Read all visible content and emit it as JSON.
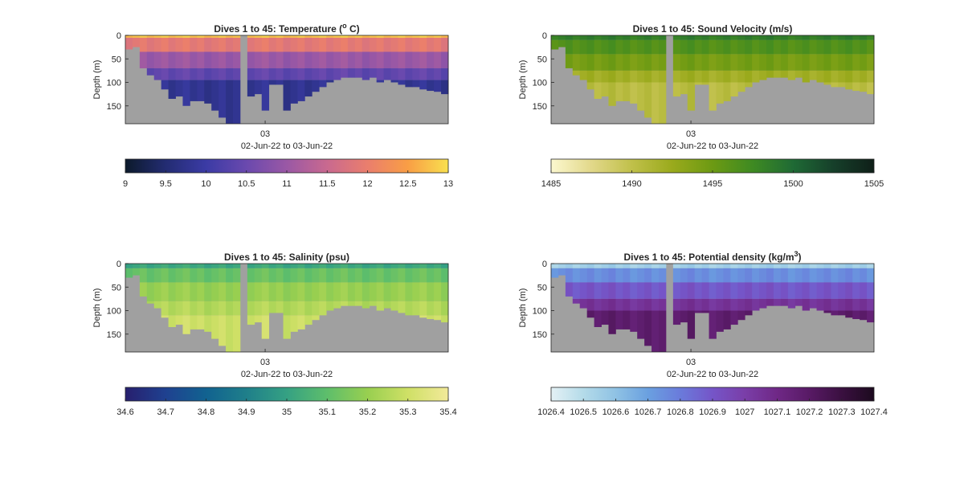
{
  "figure": {
    "background": "#ffffff",
    "land_color": "#a0a0a0"
  },
  "chart_data": [
    {
      "type": "heatmap",
      "title": "Dives 1 to 45: Temperature (",
      "title_sup": "o",
      "title_after": " C)",
      "xlabel": "02-Jun-22 to 03-Jun-22",
      "ylabel": "Depth (m)",
      "x_ticks": [
        "03"
      ],
      "y_ticks": [
        0,
        50,
        100,
        150
      ],
      "ylim": [
        0,
        188
      ],
      "dives": 45,
      "bottom_depth_m": [
        30,
        25,
        70,
        85,
        95,
        115,
        135,
        130,
        150,
        140,
        140,
        145,
        160,
        175,
        188,
        188,
        0,
        130,
        125,
        160,
        105,
        105,
        160,
        145,
        140,
        130,
        120,
        110,
        100,
        95,
        90,
        90,
        90,
        95,
        90,
        100,
        95,
        100,
        105,
        110,
        110,
        115,
        118,
        120,
        125
      ],
      "colorbar": {
        "ticks": [
          "9",
          "9.5",
          "10",
          "10.5",
          "11",
          "11.5",
          "12",
          "12.5",
          "13"
        ],
        "min": 9,
        "max": 13,
        "colors": [
          "#0c1a2b",
          "#232c72",
          "#3b3ba5",
          "#6a49ae",
          "#9a58a5",
          "#c9698f",
          "#ea7e6d",
          "#f99e45",
          "#f9e04f"
        ]
      },
      "layers": [
        {
          "from": 0,
          "to": 5,
          "value": 12.8
        },
        {
          "from": 5,
          "to": 35,
          "value": 11.9
        },
        {
          "from": 35,
          "to": 70,
          "value": 11.0
        },
        {
          "from": 70,
          "to": 95,
          "value": 10.4
        },
        {
          "from": 95,
          "to": 190,
          "value": 9.8
        }
      ]
    },
    {
      "type": "heatmap",
      "title": "Dives 1 to 45: Sound Velocity (m/s)",
      "title_sup": "",
      "title_after": "",
      "xlabel": "02-Jun-22 to 03-Jun-22",
      "ylabel": "Depth (m)",
      "x_ticks": [
        "03"
      ],
      "y_ticks": [
        0,
        50,
        100,
        150
      ],
      "ylim": [
        0,
        188
      ],
      "dives": 45,
      "bottom_depth_m": [
        30,
        25,
        70,
        85,
        95,
        115,
        135,
        130,
        150,
        140,
        140,
        145,
        160,
        175,
        188,
        188,
        0,
        130,
        125,
        160,
        105,
        105,
        160,
        145,
        140,
        130,
        120,
        110,
        100,
        95,
        90,
        90,
        90,
        95,
        90,
        100,
        95,
        100,
        105,
        110,
        110,
        115,
        118,
        120,
        125
      ],
      "colorbar": {
        "ticks": [
          "1485",
          "1490",
          "1495",
          "1500",
          "1505"
        ],
        "min": 1485,
        "max": 1505,
        "colors": [
          "#fcf8cf",
          "#e2d88a",
          "#c0c04a",
          "#9aaa1c",
          "#6c9a13",
          "#3e8a22",
          "#1f6a35",
          "#163f2a",
          "#0f1f18"
        ]
      },
      "layers": [
        {
          "from": 0,
          "to": 10,
          "value": 1498.5
        },
        {
          "from": 10,
          "to": 40,
          "value": 1496.5
        },
        {
          "from": 40,
          "to": 75,
          "value": 1494.5
        },
        {
          "from": 75,
          "to": 100,
          "value": 1492.0
        },
        {
          "from": 100,
          "to": 190,
          "value": 1490.5
        }
      ]
    },
    {
      "type": "heatmap",
      "title": "Dives 1 to 45: Salinity (psu)",
      "title_sup": "",
      "title_after": "",
      "xlabel": "02-Jun-22 to 03-Jun-22",
      "ylabel": "Depth (m)",
      "x_ticks": [
        "03"
      ],
      "y_ticks": [
        0,
        50,
        100,
        150
      ],
      "ylim": [
        0,
        188
      ],
      "dives": 45,
      "bottom_depth_m": [
        30,
        25,
        70,
        85,
        95,
        115,
        135,
        130,
        150,
        140,
        140,
        145,
        160,
        175,
        188,
        188,
        0,
        130,
        125,
        160,
        105,
        105,
        160,
        145,
        140,
        130,
        120,
        110,
        100,
        95,
        90,
        90,
        90,
        95,
        90,
        100,
        95,
        100,
        105,
        110,
        110,
        115,
        118,
        120,
        125
      ],
      "colorbar": {
        "ticks": [
          "34.6",
          "34.7",
          "34.8",
          "34.9",
          "35",
          "35.1",
          "35.2",
          "35.3",
          "35.4"
        ],
        "min": 34.6,
        "max": 35.4,
        "colors": [
          "#271f6e",
          "#1f4190",
          "#116290",
          "#1f7f8a",
          "#35a183",
          "#5ebe6b",
          "#98cf50",
          "#cfe066",
          "#f2e99a"
        ]
      },
      "layers": [
        {
          "from": 0,
          "to": 10,
          "value": 35.02
        },
        {
          "from": 10,
          "to": 40,
          "value": 35.12
        },
        {
          "from": 40,
          "to": 80,
          "value": 35.2
        },
        {
          "from": 80,
          "to": 110,
          "value": 35.25
        },
        {
          "from": 110,
          "to": 190,
          "value": 35.3
        }
      ]
    },
    {
      "type": "heatmap",
      "title": "Dives 1 to 45: Potential density (kg/m",
      "title_sup": "3",
      "title_after": ")",
      "xlabel": "02-Jun-22 to 03-Jun-22",
      "ylabel": "Depth (m)",
      "x_ticks": [
        "03"
      ],
      "y_ticks": [
        0,
        50,
        100,
        150
      ],
      "ylim": [
        0,
        188
      ],
      "dives": 45,
      "bottom_depth_m": [
        30,
        25,
        70,
        85,
        95,
        115,
        135,
        130,
        150,
        140,
        140,
        145,
        160,
        175,
        188,
        188,
        0,
        130,
        125,
        160,
        105,
        105,
        160,
        145,
        140,
        130,
        120,
        110,
        100,
        95,
        90,
        90,
        90,
        95,
        90,
        100,
        95,
        100,
        105,
        110,
        110,
        115,
        118,
        120,
        125
      ],
      "colorbar": {
        "ticks": [
          "1026.4",
          "1026.5",
          "1026.6",
          "1026.7",
          "1026.8",
          "1026.9",
          "1027",
          "1027.1",
          "1027.2",
          "1027.3",
          "1027.4"
        ],
        "min": 1026.4,
        "max": 1027.4,
        "colors": [
          "#e4f1f5",
          "#b4dbe9",
          "#8fc2e4",
          "#6aa0e0",
          "#6a7bdb",
          "#7555c8",
          "#7a3ea8",
          "#6f2886",
          "#581a65",
          "#3a1040",
          "#1c0a1e"
        ]
      },
      "layers": [
        {
          "from": 0,
          "to": 10,
          "value": 1026.55
        },
        {
          "from": 10,
          "to": 40,
          "value": 1026.75
        },
        {
          "from": 40,
          "to": 75,
          "value": 1026.9
        },
        {
          "from": 75,
          "to": 100,
          "value": 1027.05
        },
        {
          "from": 100,
          "to": 190,
          "value": 1027.18
        }
      ]
    }
  ]
}
